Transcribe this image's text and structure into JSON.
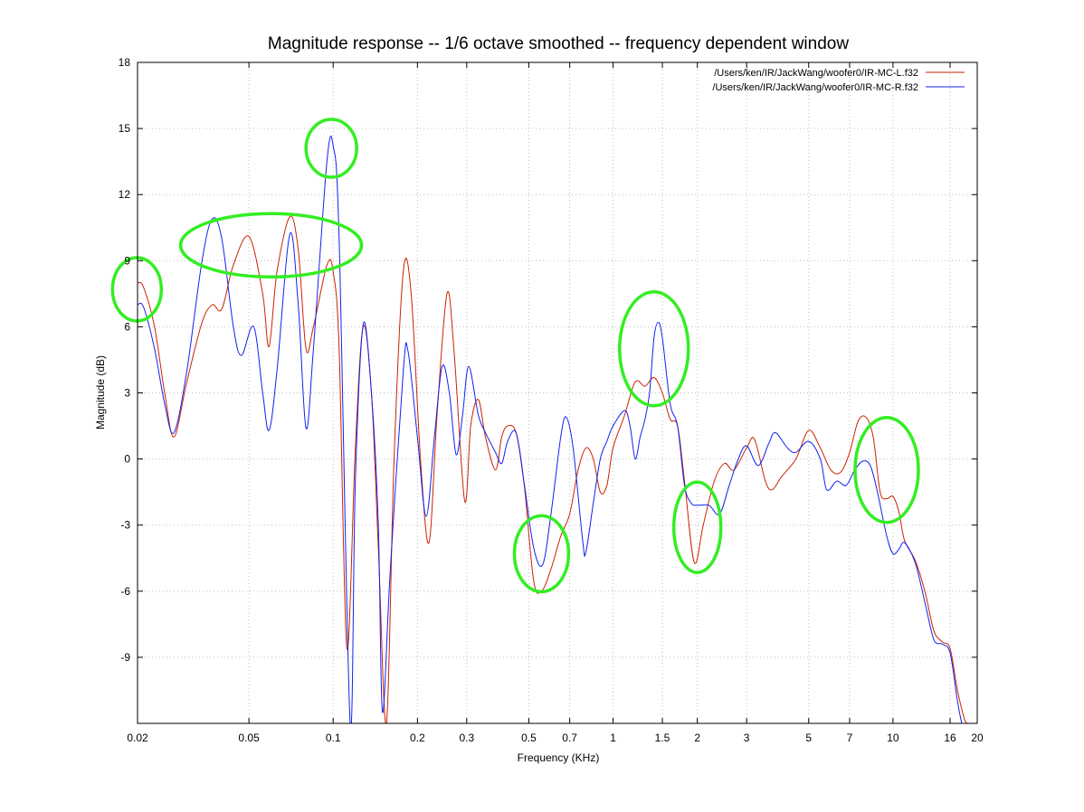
{
  "chart_data": {
    "type": "line",
    "title": "Magnitude response -- 1/6 octave smoothed -- frequency dependent window",
    "xlabel": "Frequency (KHz)",
    "ylabel": "Magnitude (dB)",
    "x_scale": "log",
    "xlim": [
      0.02,
      20
    ],
    "ylim": [
      -12,
      18
    ],
    "xticks": [
      0.02,
      0.05,
      0.1,
      0.2,
      0.3,
      0.5,
      0.7,
      1,
      1.5,
      2,
      3,
      5,
      7,
      10,
      16,
      20
    ],
    "xtick_labels": [
      "0.02",
      "0.05",
      "0.1",
      "0.2",
      "0.3",
      "0.5",
      "0.7",
      "1",
      "1.5",
      "2",
      "3",
      "5",
      "7",
      "10",
      "16",
      "20"
    ],
    "yticks": [
      -9,
      -6,
      -3,
      0,
      3,
      6,
      9,
      12,
      15,
      18
    ],
    "ytick_labels": [
      "-9",
      "-6",
      "-3",
      "0",
      "3",
      "6",
      "9",
      "12",
      "15",
      "18"
    ],
    "grid": true,
    "legend_position": "top-right",
    "series": [
      {
        "name": "/Users/ken/IR/JackWang/woofer0/IR-MC-L.f32",
        "color": "#cc2200",
        "points": [
          [
            0.02,
            8.0
          ],
          [
            0.021,
            7.8
          ],
          [
            0.023,
            6.0
          ],
          [
            0.025,
            3.0
          ],
          [
            0.027,
            1.0
          ],
          [
            0.03,
            3.5
          ],
          [
            0.034,
            6.2
          ],
          [
            0.037,
            7.0
          ],
          [
            0.04,
            6.8
          ],
          [
            0.044,
            8.8
          ],
          [
            0.05,
            10.1
          ],
          [
            0.056,
            7.5
          ],
          [
            0.059,
            5.1
          ],
          [
            0.063,
            8.5
          ],
          [
            0.07,
            11.0
          ],
          [
            0.075,
            9.5
          ],
          [
            0.08,
            5.0
          ],
          [
            0.085,
            6.0
          ],
          [
            0.095,
            8.8
          ],
          [
            0.1,
            8.5
          ],
          [
            0.105,
            5.0
          ],
          [
            0.112,
            -8.6
          ],
          [
            0.12,
            0.5
          ],
          [
            0.128,
            6.0
          ],
          [
            0.137,
            3.0
          ],
          [
            0.145,
            -4.0
          ],
          [
            0.155,
            -12.0
          ],
          [
            0.165,
            0.0
          ],
          [
            0.178,
            8.5
          ],
          [
            0.19,
            7.5
          ],
          [
            0.205,
            0.0
          ],
          [
            0.22,
            -3.8
          ],
          [
            0.235,
            2.0
          ],
          [
            0.255,
            7.5
          ],
          [
            0.27,
            5.0
          ],
          [
            0.295,
            -1.9
          ],
          [
            0.31,
            1.5
          ],
          [
            0.33,
            2.7
          ],
          [
            0.35,
            1.0
          ],
          [
            0.38,
            -0.5
          ],
          [
            0.4,
            1.0
          ],
          [
            0.42,
            1.5
          ],
          [
            0.45,
            1.2
          ],
          [
            0.48,
            -1.0
          ],
          [
            0.52,
            -5.5
          ],
          [
            0.555,
            -6.0
          ],
          [
            0.6,
            -5.0
          ],
          [
            0.65,
            -3.5
          ],
          [
            0.7,
            -2.5
          ],
          [
            0.75,
            -0.5
          ],
          [
            0.8,
            0.5
          ],
          [
            0.85,
            0.0
          ],
          [
            0.9,
            -1.5
          ],
          [
            0.95,
            -1.2
          ],
          [
            1.0,
            0.5
          ],
          [
            1.1,
            2.0
          ],
          [
            1.2,
            3.5
          ],
          [
            1.3,
            3.3
          ],
          [
            1.4,
            3.7
          ],
          [
            1.5,
            3.0
          ],
          [
            1.6,
            1.8
          ],
          [
            1.7,
            1.5
          ],
          [
            1.8,
            -1.0
          ],
          [
            1.95,
            -4.7
          ],
          [
            2.1,
            -3.0
          ],
          [
            2.3,
            -1.0
          ],
          [
            2.5,
            -0.2
          ],
          [
            2.7,
            -0.5
          ],
          [
            3.0,
            0.5
          ],
          [
            3.2,
            0.9
          ],
          [
            3.5,
            -1.0
          ],
          [
            3.7,
            -1.4
          ],
          [
            4.0,
            -0.8
          ],
          [
            4.5,
            0.0
          ],
          [
            5.0,
            1.3
          ],
          [
            5.5,
            0.5
          ],
          [
            6.0,
            -0.5
          ],
          [
            6.5,
            -0.6
          ],
          [
            7.0,
            0.3
          ],
          [
            7.5,
            1.7
          ],
          [
            8.0,
            1.9
          ],
          [
            8.5,
            1.0
          ],
          [
            9.0,
            -1.5
          ],
          [
            9.5,
            -1.8
          ],
          [
            10.0,
            -1.7
          ],
          [
            10.5,
            -2.4
          ],
          [
            11.0,
            -3.7
          ],
          [
            12.0,
            -4.6
          ],
          [
            13.0,
            -6.0
          ],
          [
            14.0,
            -7.8
          ],
          [
            15.0,
            -8.3
          ],
          [
            16.0,
            -8.6
          ],
          [
            17.0,
            -10.5
          ],
          [
            18.0,
            -11.8
          ],
          [
            18.5,
            -12.0
          ]
        ]
      },
      {
        "name": "/Users/ken/IR/JackWang/woofer0/IR-MC-R.f32",
        "color": "#1122ee",
        "points": [
          [
            0.02,
            7.0
          ],
          [
            0.021,
            6.9
          ],
          [
            0.023,
            5.0
          ],
          [
            0.025,
            2.5
          ],
          [
            0.027,
            1.2
          ],
          [
            0.03,
            4.0
          ],
          [
            0.034,
            9.0
          ],
          [
            0.037,
            10.9
          ],
          [
            0.04,
            10.0
          ],
          [
            0.044,
            6.0
          ],
          [
            0.047,
            4.7
          ],
          [
            0.052,
            6.0
          ],
          [
            0.056,
            3.0
          ],
          [
            0.059,
            1.3
          ],
          [
            0.063,
            4.0
          ],
          [
            0.07,
            10.2
          ],
          [
            0.075,
            7.0
          ],
          [
            0.08,
            1.4
          ],
          [
            0.085,
            5.0
          ],
          [
            0.095,
            13.5
          ],
          [
            0.1,
            14.2
          ],
          [
            0.105,
            10.0
          ],
          [
            0.115,
            -12.0
          ],
          [
            0.12,
            -1.0
          ],
          [
            0.128,
            6.1
          ],
          [
            0.137,
            3.0
          ],
          [
            0.145,
            -3.0
          ],
          [
            0.15,
            -11.5
          ],
          [
            0.16,
            -5.0
          ],
          [
            0.178,
            4.0
          ],
          [
            0.185,
            4.9
          ],
          [
            0.2,
            1.0
          ],
          [
            0.215,
            -2.6
          ],
          [
            0.23,
            1.0
          ],
          [
            0.245,
            4.2
          ],
          [
            0.26,
            3.0
          ],
          [
            0.275,
            0.2
          ],
          [
            0.29,
            2.0
          ],
          [
            0.305,
            4.2
          ],
          [
            0.33,
            2.0
          ],
          [
            0.35,
            1.2
          ],
          [
            0.38,
            0.3
          ],
          [
            0.4,
            -0.2
          ],
          [
            0.42,
            0.8
          ],
          [
            0.45,
            1.2
          ],
          [
            0.48,
            -1.0
          ],
          [
            0.52,
            -4.0
          ],
          [
            0.56,
            -4.8
          ],
          [
            0.6,
            -2.5
          ],
          [
            0.65,
            1.0
          ],
          [
            0.68,
            1.9
          ],
          [
            0.72,
            0.5
          ],
          [
            0.78,
            -3.8
          ],
          [
            0.8,
            -4.2
          ],
          [
            0.85,
            -2.0
          ],
          [
            0.9,
            0.0
          ],
          [
            0.95,
            0.8
          ],
          [
            1.0,
            1.5
          ],
          [
            1.1,
            2.2
          ],
          [
            1.15,
            1.5
          ],
          [
            1.2,
            0.0
          ],
          [
            1.25,
            1.0
          ],
          [
            1.3,
            1.8
          ],
          [
            1.35,
            3.0
          ],
          [
            1.4,
            5.5
          ],
          [
            1.45,
            6.2
          ],
          [
            1.5,
            5.5
          ],
          [
            1.6,
            2.5
          ],
          [
            1.7,
            1.5
          ],
          [
            1.8,
            -1.2
          ],
          [
            1.9,
            -2.0
          ],
          [
            2.0,
            -2.1
          ],
          [
            2.2,
            -2.1
          ],
          [
            2.4,
            -2.5
          ],
          [
            2.6,
            -1.2
          ],
          [
            2.8,
            0.0
          ],
          [
            3.0,
            0.6
          ],
          [
            3.3,
            -0.3
          ],
          [
            3.6,
            0.7
          ],
          [
            3.8,
            1.2
          ],
          [
            4.2,
            0.5
          ],
          [
            4.5,
            0.3
          ],
          [
            5.0,
            0.8
          ],
          [
            5.5,
            0.0
          ],
          [
            5.8,
            -1.4
          ],
          [
            6.3,
            -1.0
          ],
          [
            6.8,
            -1.2
          ],
          [
            7.3,
            -0.5
          ],
          [
            7.8,
            -0.1
          ],
          [
            8.3,
            -0.3
          ],
          [
            8.8,
            -1.5
          ],
          [
            9.5,
            -3.5
          ],
          [
            10.0,
            -4.3
          ],
          [
            10.5,
            -4.1
          ],
          [
            11.0,
            -3.8
          ],
          [
            12.0,
            -4.7
          ],
          [
            13.0,
            -6.5
          ],
          [
            14.0,
            -8.2
          ],
          [
            15.0,
            -8.4
          ],
          [
            16.0,
            -8.8
          ],
          [
            17.0,
            -11.0
          ],
          [
            17.6,
            -12.0
          ]
        ]
      }
    ],
    "annotations": [
      {
        "shape": "ellipse",
        "color": "#33ee22",
        "x": 0.0199,
        "y": 7.7,
        "note": ""
      },
      {
        "shape": "ellipse",
        "color": "#33ee22",
        "x": 0.06,
        "y": 9.7,
        "note": ""
      },
      {
        "shape": "ellipse",
        "color": "#33ee22",
        "x": 0.0985,
        "y": 14.1,
        "note": ""
      },
      {
        "shape": "ellipse",
        "color": "#33ee22",
        "x": 0.555,
        "y": -4.3,
        "note": ""
      },
      {
        "shape": "ellipse",
        "color": "#33ee22",
        "x": 1.4,
        "y": 5.0,
        "note": ""
      },
      {
        "shape": "ellipse",
        "color": "#33ee22",
        "x": 2.0,
        "y": -3.1,
        "note": ""
      },
      {
        "shape": "ellipse",
        "color": "#33ee22",
        "x": 9.5,
        "y": -0.5,
        "note": ""
      }
    ]
  }
}
